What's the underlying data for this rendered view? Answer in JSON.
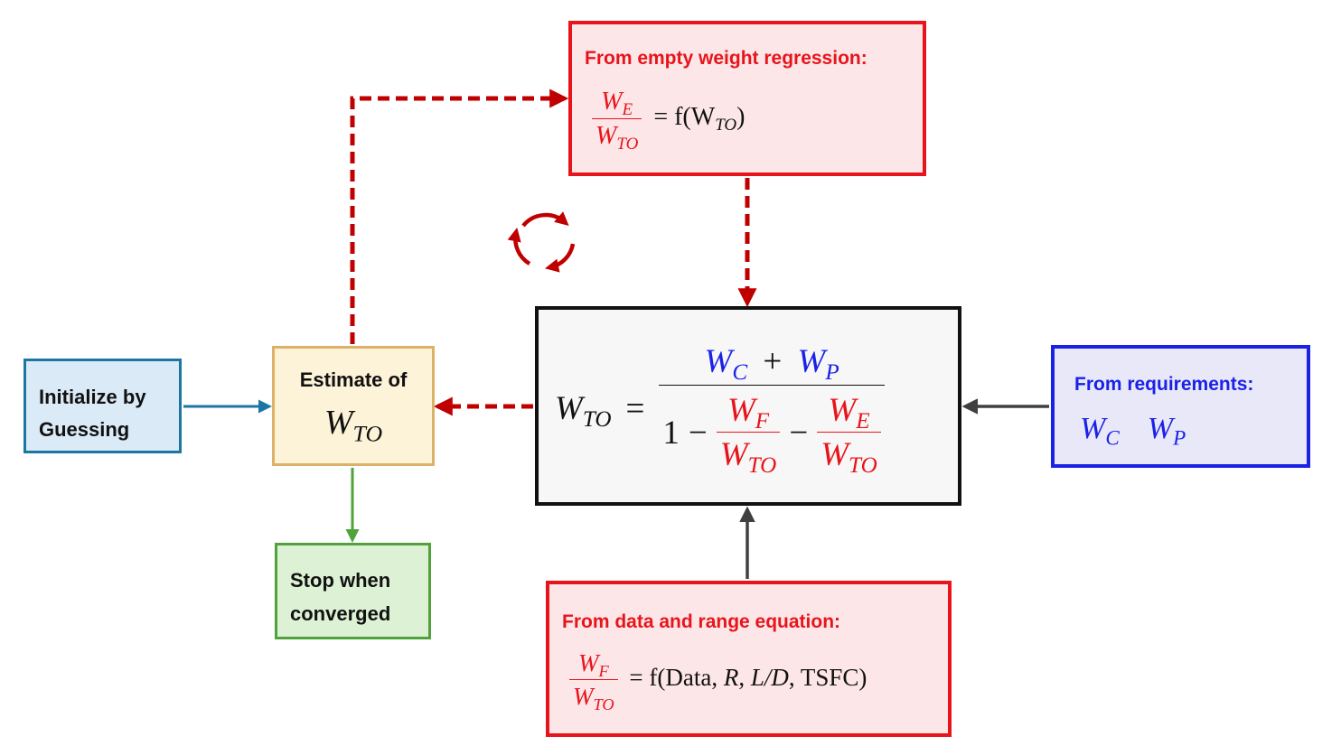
{
  "diagram": {
    "empty_weight": {
      "title": "From empty weight regression:",
      "eq_num_var": "W",
      "eq_num_sub": "E",
      "eq_den_var": "W",
      "eq_den_sub": "TO",
      "eq_rhs_pre": "= f(W",
      "eq_rhs_sub": "TO",
      "eq_rhs_post": ")"
    },
    "main_equation": {
      "lhs_var": "W",
      "lhs_sub": "TO",
      "equals": "=",
      "num_a_var": "W",
      "num_a_sub": "C",
      "plus": "+",
      "num_b_var": "W",
      "num_b_sub": "P",
      "one": "1",
      "minus": "−",
      "f_num_var": "W",
      "f_num_sub": "F",
      "f_den_var": "W",
      "f_den_sub": "TO",
      "e_num_var": "W",
      "e_num_sub": "E",
      "e_den_var": "W",
      "e_den_sub": "TO"
    },
    "initialize": {
      "line1": "Initialize by",
      "line2": "Guessing"
    },
    "estimate": {
      "label": "Estimate of",
      "var": "W",
      "sub": "TO"
    },
    "stop": {
      "line1": "Stop when",
      "line2": "converged"
    },
    "requirements": {
      "title": "From requirements:",
      "var1": "W",
      "sub1": "C",
      "var2": "W",
      "sub2": "P"
    },
    "range_data": {
      "title": "From data and range equation:",
      "eq_num_var": "W",
      "eq_num_sub": "F",
      "eq_den_var": "W",
      "eq_den_sub": "TO",
      "eq_rhs_pre": "= f(Data, ",
      "eq_rhs_r": "R",
      "eq_rhs_comma": ", ",
      "eq_rhs_ld": "L/D",
      "eq_rhs_post": ", TSFC)"
    },
    "colors": {
      "red": "#e8141b",
      "dark_red": "#c00000",
      "blue": "#1a22e6",
      "init_border": "#1c76a4",
      "estimate_border": "#dcb268",
      "stop_border": "#50a23a",
      "arrow_gray": "#404040"
    },
    "icons": {
      "cycle": "cycle-arrows-icon"
    }
  }
}
